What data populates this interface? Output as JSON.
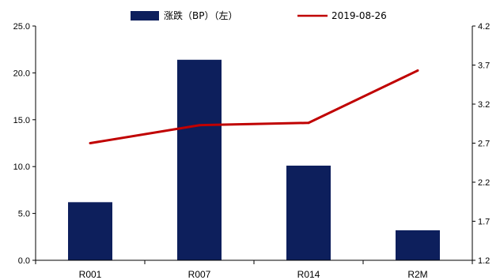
{
  "chart_data": {
    "type": "bar+line",
    "categories": [
      "R001",
      "R007",
      "R014",
      "R2M"
    ],
    "series": [
      {
        "name": "涨跌（BP）（左）",
        "type": "bar",
        "axis": "left",
        "color": "#0D1F5C",
        "values": [
          6.2,
          21.4,
          10.1,
          3.2
        ]
      },
      {
        "name": "2019-08-26",
        "type": "line",
        "axis": "right",
        "color": "#C00000",
        "values": [
          2.7,
          2.93,
          2.96,
          3.63
        ]
      }
    ],
    "y_left": {
      "min": 0,
      "max": 25,
      "ticks": [
        "0.0",
        "5.0",
        "10.0",
        "15.0",
        "20.0",
        "25.0"
      ]
    },
    "y_right": {
      "min": 1.2,
      "max": 4.2,
      "ticks": [
        "1.2",
        "1.7",
        "2.2",
        "2.7",
        "3.2",
        "3.7",
        "4.2"
      ]
    },
    "legend_position": "top-center",
    "grid": false
  }
}
